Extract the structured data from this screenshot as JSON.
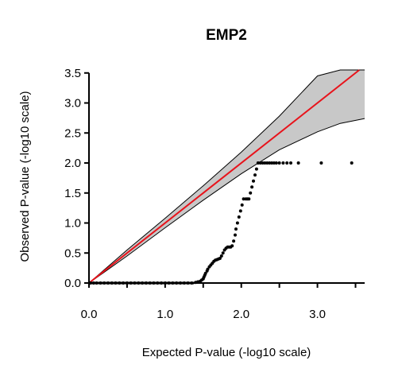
{
  "chart_data": {
    "type": "scatter",
    "title": "EMP2",
    "xlabel": "Expected P-value (-log10 scale)",
    "ylabel": "Observed P-value (-log10 scale)",
    "xlim": [
      0,
      3.62
    ],
    "ylim": [
      0,
      3.55
    ],
    "xticks": [
      0.0,
      1.0,
      2.0,
      3.0
    ],
    "xtick_labels": [
      "0.0",
      "1.0",
      "2.0",
      "3.0"
    ],
    "yticks": [
      0.0,
      0.5,
      1.0,
      1.5,
      2.0,
      2.5,
      3.0,
      3.5
    ],
    "ytick_labels": [
      "0.0",
      "0.5",
      "1.0",
      "1.5",
      "2.0",
      "2.5",
      "3.0",
      "3.5"
    ],
    "grid": false,
    "reference_line": {
      "slope": 1,
      "intercept": 0,
      "color": "#e8131b"
    },
    "confidence_band": {
      "color": "#c8c8c8",
      "x": [
        0.0,
        0.5,
        1.0,
        1.5,
        2.0,
        2.5,
        3.0,
        3.3,
        3.62
      ],
      "upper": [
        0.0,
        0.55,
        1.08,
        1.62,
        2.18,
        2.78,
        3.45,
        3.55,
        3.55
      ],
      "lower": [
        0.0,
        0.45,
        0.92,
        1.38,
        1.82,
        2.22,
        2.52,
        2.66,
        2.74
      ]
    },
    "points": {
      "color": "#000000",
      "x": [
        0.02,
        0.06,
        0.1,
        0.15,
        0.2,
        0.25,
        0.3,
        0.35,
        0.4,
        0.45,
        0.5,
        0.55,
        0.6,
        0.65,
        0.7,
        0.75,
        0.8,
        0.85,
        0.9,
        0.95,
        1.0,
        1.05,
        1.1,
        1.15,
        1.2,
        1.25,
        1.3,
        1.35,
        1.4,
        1.43,
        1.46,
        1.48,
        1.5,
        1.51,
        1.52,
        1.53,
        1.55,
        1.56,
        1.58,
        1.6,
        1.62,
        1.64,
        1.66,
        1.68,
        1.7,
        1.72,
        1.74,
        1.76,
        1.78,
        1.8,
        1.82,
        1.84,
        1.86,
        1.88,
        1.9,
        1.92,
        1.93,
        1.95,
        1.97,
        1.99,
        2.01,
        2.03,
        2.06,
        2.08,
        2.1,
        2.12,
        2.14,
        2.16,
        2.18,
        2.2,
        2.22,
        2.25,
        2.28,
        2.31,
        2.34,
        2.37,
        2.4,
        2.43,
        2.46,
        2.5,
        2.55,
        2.6,
        2.65,
        2.75,
        3.05,
        3.45
      ],
      "y": [
        0.0,
        0.0,
        0.0,
        0.0,
        0.0,
        0.0,
        0.0,
        0.0,
        0.0,
        0.0,
        0.0,
        0.0,
        0.0,
        0.0,
        0.0,
        0.0,
        0.0,
        0.0,
        0.0,
        0.0,
        0.0,
        0.0,
        0.0,
        0.0,
        0.0,
        0.0,
        0.0,
        0.0,
        0.01,
        0.02,
        0.03,
        0.05,
        0.07,
        0.1,
        0.13,
        0.16,
        0.2,
        0.23,
        0.27,
        0.3,
        0.33,
        0.36,
        0.38,
        0.39,
        0.4,
        0.41,
        0.45,
        0.5,
        0.55,
        0.58,
        0.6,
        0.6,
        0.6,
        0.62,
        0.7,
        0.8,
        0.9,
        1.0,
        1.1,
        1.2,
        1.3,
        1.4,
        1.4,
        1.4,
        1.4,
        1.5,
        1.6,
        1.7,
        1.8,
        1.9,
        2.0,
        2.0,
        2.0,
        2.0,
        2.0,
        2.0,
        2.0,
        2.0,
        2.0,
        2.0,
        2.0,
        2.0,
        2.0,
        2.0,
        2.0,
        2.0
      ]
    }
  }
}
